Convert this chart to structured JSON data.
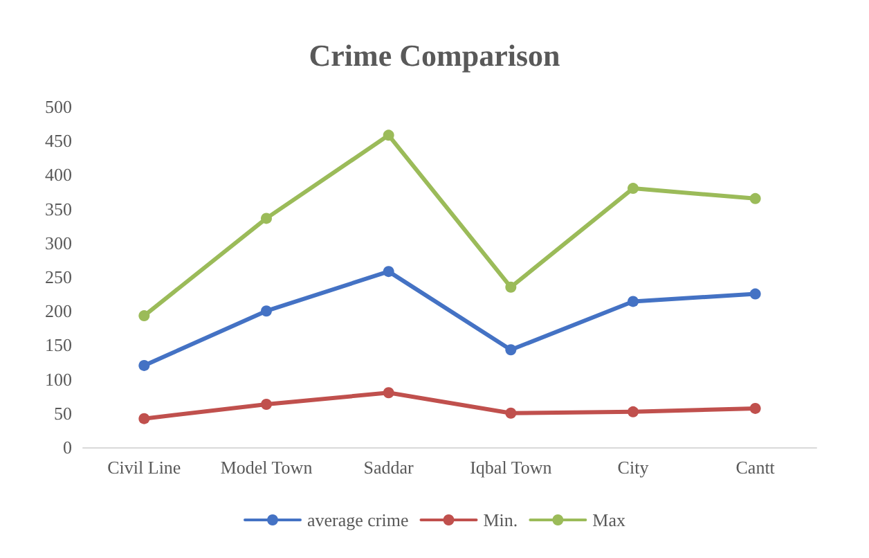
{
  "chart_data": {
    "type": "line",
    "title": "Crime Comparison",
    "categories": [
      "Civil Line",
      "Model Town",
      "Saddar",
      "Iqbal Town",
      "City",
      "Cantt"
    ],
    "series": [
      {
        "name": "average crime",
        "color": "#4472c4",
        "values": [
          120,
          200,
          258,
          143,
          214,
          225
        ]
      },
      {
        "name": "Min.",
        "color": "#c0504d",
        "values": [
          42,
          63,
          80,
          50,
          52,
          57
        ]
      },
      {
        "name": "Max",
        "color": "#9bbb59",
        "values": [
          193,
          336,
          458,
          235,
          380,
          365
        ]
      }
    ],
    "ylim": [
      0,
      500
    ],
    "yticks": [
      0,
      50,
      100,
      150,
      200,
      250,
      300,
      350,
      400,
      450,
      500
    ],
    "grid": false,
    "legend": "bottom",
    "marker": "circle",
    "line_style": "solid"
  }
}
